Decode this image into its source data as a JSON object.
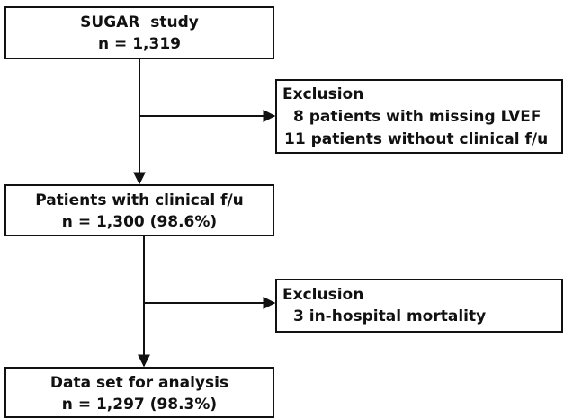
{
  "nodes": [
    {
      "lines": [
        "SUGAR  study",
        "n = 1,319"
      ]
    },
    {
      "lines": [
        "Exclusion",
        "8 patients with missing LVEF",
        "11 patients without clinical f/u"
      ]
    },
    {
      "lines": [
        "Patients with clinical f/u",
        "n = 1,300 (98.6%)"
      ]
    },
    {
      "lines": [
        "Exclusion",
        "3 in-hospital mortality"
      ]
    },
    {
      "lines": [
        "Data set for analysis",
        "n = 1,297 (98.3%)"
      ]
    }
  ]
}
